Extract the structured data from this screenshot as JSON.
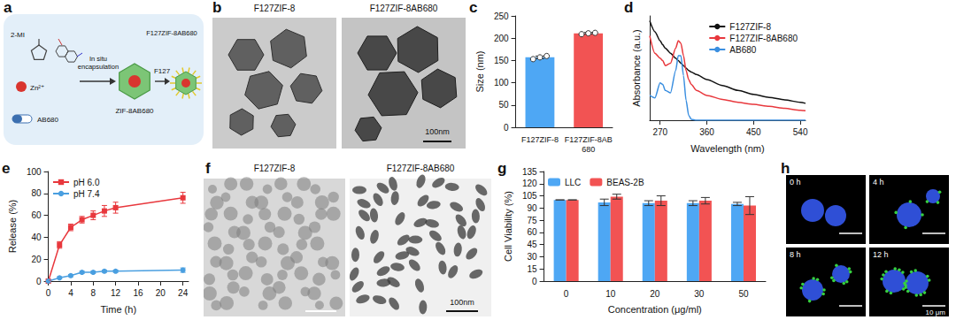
{
  "panel_letters": [
    "a",
    "b",
    "c",
    "d",
    "e",
    "f",
    "g",
    "h"
  ],
  "schematic": {
    "linker": "2-MI",
    "metal": "Zn²⁺",
    "drug": "AB680",
    "step": "In situ encapsulation",
    "intermediate": "ZIF-8AB680",
    "coating": "F127",
    "product": "F127ZIF-8AB680"
  },
  "tem_b": {
    "titles": [
      "F127ZIF-8",
      "F127ZIF-8AB680"
    ],
    "scale_bar": "100nm"
  },
  "tem_f": {
    "titles": [
      "F127ZIF-8",
      "F127ZIF-8AB680"
    ],
    "scale_bar": "100nm"
  },
  "confocal_h": {
    "times": [
      "0 h",
      "4 h",
      "8 h",
      "12 h"
    ],
    "scale_bar": "10 μm"
  },
  "chart_data": [
    {
      "type": "bar",
      "categories": [
        "F127ZIF-8",
        "F127ZIF-8AB680"
      ],
      "values": [
        157,
        211
      ],
      "errors": [
        3,
        2
      ],
      "points": [
        [
          153,
          157,
          160
        ],
        [
          209,
          211,
          212
        ]
      ],
      "colors": [
        "#4ea7f4",
        "#f25353"
      ],
      "y_label": "Size (nm)",
      "ylim": [
        0,
        250
      ],
      "yticks": [
        0,
        50,
        100,
        150,
        200,
        250
      ],
      "grid": false
    },
    {
      "type": "line",
      "x": [
        250,
        260,
        270,
        275,
        280,
        290,
        300,
        305,
        310,
        315,
        320,
        325,
        330,
        340,
        360,
        390,
        420,
        450,
        480,
        510,
        540,
        550
      ],
      "series": [
        {
          "name": "F127ZIF-8",
          "color": "#111111",
          "values": [
            2.0,
            1.78,
            1.6,
            1.52,
            1.45,
            1.35,
            1.25,
            1.2,
            1.15,
            1.1,
            1.05,
            1.0,
            0.97,
            0.92,
            0.82,
            0.7,
            0.6,
            0.52,
            0.46,
            0.41,
            0.36,
            0.34
          ]
        },
        {
          "name": "F127ZIF-8AB680",
          "color": "#e8383d",
          "values": [
            1.7,
            1.35,
            1.25,
            1.2,
            1.1,
            1.15,
            1.45,
            1.6,
            1.55,
            1.3,
            1.0,
            0.82,
            0.72,
            0.6,
            0.5,
            0.42,
            0.36,
            0.32,
            0.28,
            0.24,
            0.2,
            0.19
          ]
        },
        {
          "name": "AB680",
          "color": "#3b8fe0",
          "values": [
            0.5,
            0.45,
            0.75,
            0.72,
            0.6,
            0.55,
            1.0,
            1.3,
            1.3,
            0.9,
            0.4,
            0.1,
            0.02,
            0,
            0,
            0,
            0,
            0,
            0,
            0,
            0,
            0
          ]
        }
      ],
      "x_label": "Wavelength (nm)",
      "y_label": "Absorbance (a.u.)",
      "xlim": [
        250,
        550
      ],
      "xticks": [
        270,
        360,
        450,
        540
      ],
      "ylim": [
        0,
        2.1
      ],
      "tick_labels": "x",
      "legend": "upper right",
      "grid": false
    },
    {
      "type": "line",
      "x": [
        0,
        2,
        4,
        6,
        8,
        10,
        12,
        24
      ],
      "series": [
        {
          "name": "pH 6.0",
          "color": "#e8383d",
          "marker": "square",
          "values": [
            0,
            33,
            49,
            56,
            60,
            64,
            67,
            76
          ],
          "errors": [
            0,
            3,
            3,
            3,
            4,
            5,
            5,
            5
          ]
        },
        {
          "name": "pH 7.4",
          "color": "#4a9fe0",
          "marker": "circle",
          "values": [
            0,
            3,
            5,
            8,
            8,
            9,
            9,
            10
          ],
          "errors": [
            1,
            1,
            1,
            1,
            1,
            1,
            1,
            2
          ]
        }
      ],
      "x_label": "Time (h)",
      "y_label": "Release (%)",
      "xlim": [
        0,
        25
      ],
      "xticks": [
        0,
        4,
        8,
        12,
        16,
        20,
        24
      ],
      "ylim": [
        0,
        100
      ],
      "yticks": [
        0,
        20,
        40,
        60,
        80,
        100
      ],
      "legend": "upper left",
      "grid": false
    },
    {
      "type": "bar",
      "categories": [
        "0",
        "10",
        "20",
        "30",
        "50"
      ],
      "series": [
        {
          "name": "LLC",
          "color": "#4ea7f4",
          "values": [
            100,
            97,
            96,
            96,
            95
          ],
          "errors": [
            0,
            4,
            3,
            3,
            2
          ]
        },
        {
          "name": "BEAS-2B",
          "color": "#f25353",
          "values": [
            100,
            104,
            99,
            99,
            93
          ],
          "errors": [
            0,
            3,
            6,
            4,
            11
          ]
        }
      ],
      "x_label": "Concentration (μg/ml)",
      "y_label": "Cell Viability (%)",
      "ylim": [
        0,
        135
      ],
      "yticks": [
        0,
        15,
        30,
        45,
        60,
        75,
        90,
        105,
        120,
        135
      ],
      "legend": "upper left",
      "grid": false
    }
  ]
}
